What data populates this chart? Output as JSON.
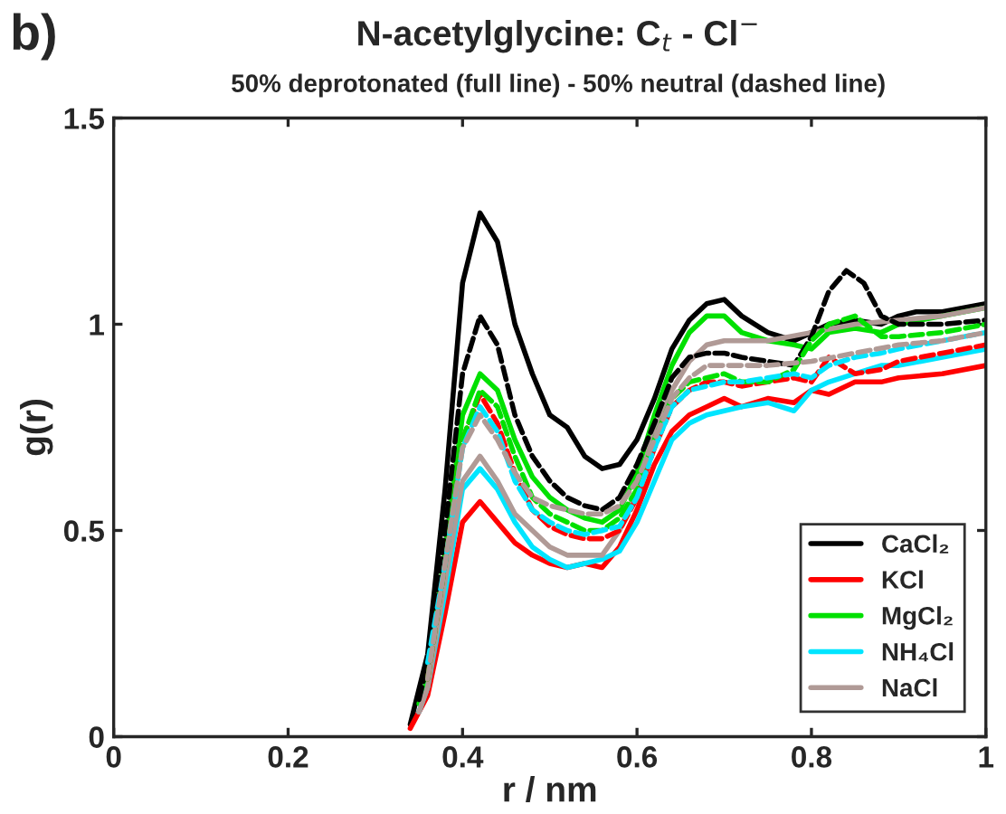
{
  "chart_data": {
    "type": "line",
    "title": "N-acetylglycine: C$_{t}$ - Cl$^{−}$",
    "subtitle": "50% deprotonated (full line) - 50% neutral (dashed line)",
    "xlabel": "r / nm",
    "ylabel": "g(r)",
    "annotations": [
      "b)"
    ],
    "xlim": [
      0,
      1
    ],
    "ylim": [
      0,
      1.5
    ],
    "xticks": [
      0,
      0.2,
      0.4,
      0.6,
      0.8,
      1
    ],
    "yticks": [
      0,
      0.5,
      1,
      1.5
    ],
    "grid": false,
    "legend": "bottom right",
    "series": [
      {
        "name": "CaCl₂",
        "color": "#000000",
        "line_style": "solid",
        "x": [
          0.34,
          0.36,
          0.38,
          0.4,
          0.42,
          0.44,
          0.46,
          0.48,
          0.5,
          0.52,
          0.54,
          0.56,
          0.58,
          0.6,
          0.62,
          0.64,
          0.66,
          0.68,
          0.7,
          0.72,
          0.75,
          0.78,
          0.8,
          0.82,
          0.85,
          0.88,
          0.9,
          0.92,
          0.95,
          1.0
        ],
        "values": [
          0.03,
          0.2,
          0.6,
          1.1,
          1.27,
          1.2,
          1.0,
          0.88,
          0.78,
          0.75,
          0.68,
          0.65,
          0.66,
          0.72,
          0.82,
          0.94,
          1.01,
          1.05,
          1.06,
          1.02,
          0.98,
          0.96,
          0.98,
          1.0,
          1.01,
          1.0,
          1.02,
          1.03,
          1.03,
          1.05
        ]
      },
      {
        "name": "KCl",
        "color": "#ff0000",
        "line_style": "solid",
        "x": [
          0.34,
          0.36,
          0.38,
          0.4,
          0.42,
          0.44,
          0.46,
          0.48,
          0.5,
          0.52,
          0.54,
          0.56,
          0.58,
          0.6,
          0.62,
          0.64,
          0.66,
          0.68,
          0.7,
          0.72,
          0.75,
          0.78,
          0.8,
          0.82,
          0.85,
          0.88,
          0.9,
          0.95,
          1.0
        ],
        "values": [
          0.02,
          0.1,
          0.3,
          0.52,
          0.57,
          0.52,
          0.47,
          0.44,
          0.42,
          0.41,
          0.42,
          0.41,
          0.46,
          0.55,
          0.66,
          0.74,
          0.78,
          0.8,
          0.82,
          0.8,
          0.82,
          0.81,
          0.84,
          0.83,
          0.86,
          0.86,
          0.87,
          0.88,
          0.9
        ]
      },
      {
        "name": "MgCl₂",
        "color": "#00e000",
        "line_style": "solid",
        "x": [
          0.35,
          0.36,
          0.38,
          0.4,
          0.42,
          0.44,
          0.46,
          0.48,
          0.5,
          0.52,
          0.54,
          0.56,
          0.58,
          0.6,
          0.62,
          0.64,
          0.66,
          0.68,
          0.7,
          0.72,
          0.75,
          0.78,
          0.8,
          0.82,
          0.85,
          0.88,
          0.9,
          0.95,
          1.0
        ],
        "values": [
          0.08,
          0.14,
          0.45,
          0.78,
          0.88,
          0.84,
          0.72,
          0.63,
          0.58,
          0.55,
          0.53,
          0.52,
          0.55,
          0.64,
          0.78,
          0.9,
          0.98,
          1.02,
          1.02,
          0.98,
          0.96,
          0.95,
          0.94,
          0.98,
          0.99,
          0.98,
          1.0,
          1.02,
          1.04
        ]
      },
      {
        "name": "NH₄Cl",
        "color": "#00e5ff",
        "line_style": "solid",
        "x": [
          0.35,
          0.36,
          0.38,
          0.4,
          0.42,
          0.44,
          0.46,
          0.48,
          0.5,
          0.52,
          0.54,
          0.56,
          0.58,
          0.6,
          0.62,
          0.64,
          0.66,
          0.68,
          0.7,
          0.72,
          0.75,
          0.78,
          0.8,
          0.82,
          0.85,
          0.88,
          0.9,
          0.95,
          1.0
        ],
        "values": [
          0.06,
          0.12,
          0.35,
          0.6,
          0.65,
          0.6,
          0.52,
          0.46,
          0.43,
          0.41,
          0.42,
          0.43,
          0.45,
          0.52,
          0.62,
          0.72,
          0.76,
          0.78,
          0.79,
          0.8,
          0.81,
          0.79,
          0.84,
          0.86,
          0.88,
          0.9,
          0.9,
          0.92,
          0.94
        ]
      },
      {
        "name": "NaCl",
        "color": "#b09a96",
        "line_style": "solid",
        "x": [
          0.35,
          0.36,
          0.38,
          0.4,
          0.42,
          0.44,
          0.46,
          0.48,
          0.5,
          0.52,
          0.54,
          0.56,
          0.58,
          0.6,
          0.62,
          0.64,
          0.66,
          0.68,
          0.7,
          0.75,
          0.8,
          0.85,
          0.9,
          0.95,
          1.0
        ],
        "values": [
          0.06,
          0.12,
          0.38,
          0.62,
          0.68,
          0.62,
          0.54,
          0.5,
          0.46,
          0.44,
          0.44,
          0.44,
          0.5,
          0.6,
          0.74,
          0.84,
          0.91,
          0.95,
          0.96,
          0.96,
          0.98,
          1.0,
          1.01,
          1.02,
          1.04
        ]
      },
      {
        "color": "#000000",
        "line_style": "dashed",
        "x": [
          0.35,
          0.36,
          0.38,
          0.4,
          0.42,
          0.44,
          0.46,
          0.48,
          0.5,
          0.52,
          0.54,
          0.56,
          0.58,
          0.6,
          0.62,
          0.64,
          0.66,
          0.68,
          0.7,
          0.72,
          0.75,
          0.78,
          0.8,
          0.82,
          0.84,
          0.86,
          0.88,
          0.9,
          0.95,
          1.0
        ],
        "values": [
          0.09,
          0.18,
          0.5,
          0.88,
          1.02,
          0.95,
          0.78,
          0.68,
          0.62,
          0.58,
          0.56,
          0.55,
          0.58,
          0.66,
          0.76,
          0.87,
          0.92,
          0.93,
          0.93,
          0.92,
          0.91,
          0.9,
          0.97,
          1.08,
          1.13,
          1.1,
          1.02,
          1.0,
          1.0,
          1.01
        ]
      },
      {
        "color": "#ff0000",
        "line_style": "dashed",
        "x": [
          0.36,
          0.38,
          0.4,
          0.42,
          0.44,
          0.46,
          0.48,
          0.5,
          0.52,
          0.54,
          0.56,
          0.58,
          0.6,
          0.62,
          0.64,
          0.66,
          0.68,
          0.7,
          0.72,
          0.75,
          0.78,
          0.8,
          0.82,
          0.85,
          0.88,
          0.9,
          0.95,
          1.0
        ],
        "values": [
          0.14,
          0.42,
          0.72,
          0.83,
          0.76,
          0.64,
          0.55,
          0.51,
          0.49,
          0.48,
          0.48,
          0.5,
          0.58,
          0.7,
          0.8,
          0.84,
          0.86,
          0.86,
          0.85,
          0.86,
          0.87,
          0.86,
          0.92,
          0.88,
          0.89,
          0.91,
          0.93,
          0.95
        ]
      },
      {
        "color": "#00e000",
        "line_style": "dashed",
        "x": [
          0.36,
          0.38,
          0.4,
          0.42,
          0.44,
          0.46,
          0.48,
          0.5,
          0.52,
          0.54,
          0.56,
          0.58,
          0.6,
          0.62,
          0.64,
          0.66,
          0.68,
          0.7,
          0.72,
          0.75,
          0.78,
          0.8,
          0.82,
          0.85,
          0.88,
          0.9,
          0.95,
          1.0
        ],
        "values": [
          0.14,
          0.42,
          0.72,
          0.84,
          0.8,
          0.68,
          0.58,
          0.54,
          0.52,
          0.5,
          0.5,
          0.53,
          0.6,
          0.72,
          0.82,
          0.86,
          0.87,
          0.88,
          0.86,
          0.86,
          0.89,
          0.96,
          1.0,
          1.02,
          0.97,
          0.97,
          0.98,
          1.0
        ]
      },
      {
        "color": "#00e5ff",
        "line_style": "dashed",
        "x": [
          0.36,
          0.38,
          0.4,
          0.42,
          0.44,
          0.46,
          0.48,
          0.5,
          0.52,
          0.54,
          0.56,
          0.58,
          0.6,
          0.62,
          0.64,
          0.66,
          0.68,
          0.7,
          0.72,
          0.75,
          0.78,
          0.8,
          0.82,
          0.85,
          0.88,
          0.9,
          0.95,
          1.0
        ],
        "values": [
          0.18,
          0.42,
          0.7,
          0.8,
          0.74,
          0.62,
          0.55,
          0.52,
          0.5,
          0.49,
          0.5,
          0.51,
          0.58,
          0.7,
          0.8,
          0.84,
          0.85,
          0.86,
          0.86,
          0.87,
          0.88,
          0.87,
          0.9,
          0.92,
          0.93,
          0.94,
          0.96,
          0.98
        ]
      },
      {
        "color": "#b09a96",
        "line_style": "dashed",
        "x": [
          0.36,
          0.38,
          0.4,
          0.42,
          0.44,
          0.46,
          0.48,
          0.5,
          0.52,
          0.54,
          0.56,
          0.58,
          0.6,
          0.62,
          0.64,
          0.66,
          0.68,
          0.7,
          0.75,
          0.8,
          0.85,
          0.9,
          0.95,
          1.0
        ],
        "values": [
          0.14,
          0.42,
          0.7,
          0.78,
          0.72,
          0.64,
          0.58,
          0.56,
          0.55,
          0.54,
          0.54,
          0.56,
          0.62,
          0.72,
          0.82,
          0.87,
          0.9,
          0.9,
          0.9,
          0.91,
          0.93,
          0.95,
          0.96,
          0.98
        ]
      }
    ]
  }
}
